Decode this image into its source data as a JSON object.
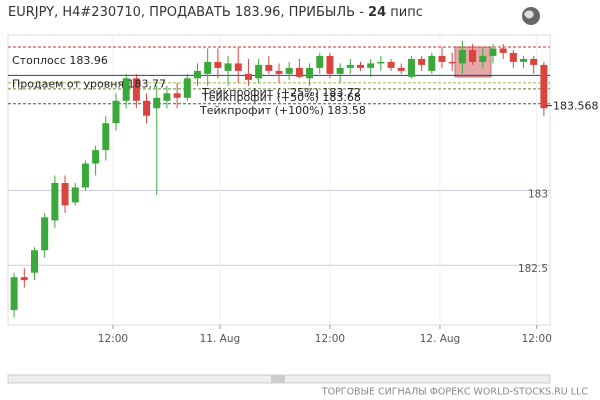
{
  "chart_data": {
    "type": "candlestick",
    "title": "EURJPY, H4#230710, ПРОДАВАТЬ 183.96, ПРИБЫЛЬ -",
    "profit": 24,
    "profit_unit": "пипс",
    "footer": "ТОРГОВЫЕ СИГНАЛЫ ФОРЕКС WORLD-STOCKS.RU LLC",
    "up_color": "#3aa83a",
    "down_color": "#d9443f",
    "ylim": [
      182.1,
      184.04
    ],
    "yticks": [
      182.5,
      183
    ],
    "xlim": [
      -0.6,
      52.6
    ],
    "xticks": [
      {
        "value": 9.7,
        "label": "12:00"
      },
      {
        "value": 20.2,
        "label": "11. Aug"
      },
      {
        "value": 31,
        "label": "12:00"
      },
      {
        "value": 41.8,
        "label": "12. Aug"
      },
      {
        "value": 51.3,
        "label": "12:00"
      }
    ],
    "grid": true,
    "last_price": 183.568,
    "levels": [
      {
        "name": "Стоплосс 183.96",
        "value": 183.96,
        "color": "#d03030",
        "dashed": true
      },
      {
        "name": "Продаем от уровня 183.77",
        "value": 183.77,
        "color": "#2a3a9a",
        "dashed": false
      },
      {
        "name": "Тейкпрофит (+25%) 183.72",
        "value": 183.72,
        "color": "#9ab840",
        "dashed": true
      },
      {
        "name": "Тейкпрофит (+50%) 183.68",
        "value": 183.68,
        "color": "#5a8a30",
        "dashed": true
      },
      {
        "name": "Тейкпрофит (+100%) 183.58",
        "value": 183.58,
        "color": "#2a6a3a",
        "dashed": true
      }
    ],
    "open": [
      182.2,
      182.42,
      182.45,
      182.6,
      182.8,
      183.05,
      182.92,
      183.02,
      183.18,
      183.27,
      183.45,
      183.6,
      183.75,
      183.6,
      183.55,
      183.6,
      183.65,
      183.62,
      183.75,
      183.78,
      183.86,
      183.8,
      183.85,
      183.78,
      183.75,
      183.84,
      183.8,
      183.78,
      183.82,
      183.75,
      183.82,
      183.9,
      183.78,
      183.82,
      183.84,
      183.82,
      183.85,
      183.86,
      183.82,
      183.76,
      183.88,
      183.8,
      183.9,
      183.86,
      183.85,
      183.94,
      183.86,
      183.9,
      183.95,
      183.92,
      183.86,
      183.88,
      183.84
    ],
    "high": [
      182.45,
      182.48,
      182.62,
      182.85,
      183.1,
      183.1,
      183.05,
      183.2,
      183.3,
      183.5,
      183.65,
      183.78,
      183.78,
      183.65,
      183.7,
      183.7,
      183.72,
      183.78,
      183.85,
      183.95,
      183.95,
      183.9,
      183.96,
      183.88,
      183.88,
      183.9,
      183.85,
      183.86,
      183.88,
      183.85,
      183.92,
      183.92,
      183.85,
      183.88,
      183.86,
      183.88,
      183.9,
      183.88,
      183.85,
      183.9,
      183.9,
      183.92,
      183.96,
      183.92,
      184.0,
      183.98,
      183.95,
      183.98,
      183.98,
      183.94,
      183.9,
      183.9,
      183.86
    ],
    "low": [
      182.15,
      182.35,
      182.4,
      182.55,
      182.75,
      182.85,
      182.9,
      183.0,
      183.1,
      183.2,
      183.4,
      183.55,
      183.55,
      183.45,
      182.97,
      183.55,
      183.55,
      183.6,
      183.7,
      183.7,
      183.75,
      183.7,
      183.72,
      183.7,
      183.72,
      183.78,
      183.72,
      183.74,
      183.75,
      183.7,
      183.78,
      183.75,
      183.72,
      183.78,
      183.8,
      183.76,
      183.8,
      183.8,
      183.78,
      183.75,
      183.8,
      183.78,
      183.82,
      183.8,
      183.78,
      183.84,
      183.82,
      183.85,
      183.88,
      183.82,
      183.82,
      183.78,
      183.5
    ],
    "close": [
      182.42,
      182.4,
      182.6,
      182.82,
      183.05,
      182.9,
      183.02,
      183.18,
      183.27,
      183.45,
      183.6,
      183.75,
      183.6,
      183.5,
      183.62,
      183.65,
      183.62,
      183.75,
      183.8,
      183.86,
      183.82,
      183.85,
      183.8,
      183.74,
      183.84,
      183.8,
      183.78,
      183.82,
      183.76,
      183.82,
      183.9,
      183.78,
      183.82,
      183.84,
      183.82,
      183.85,
      183.86,
      183.82,
      183.8,
      183.88,
      183.84,
      183.9,
      183.86,
      183.85,
      183.94,
      183.86,
      183.9,
      183.95,
      183.92,
      183.86,
      183.88,
      183.84,
      183.55
    ]
  }
}
